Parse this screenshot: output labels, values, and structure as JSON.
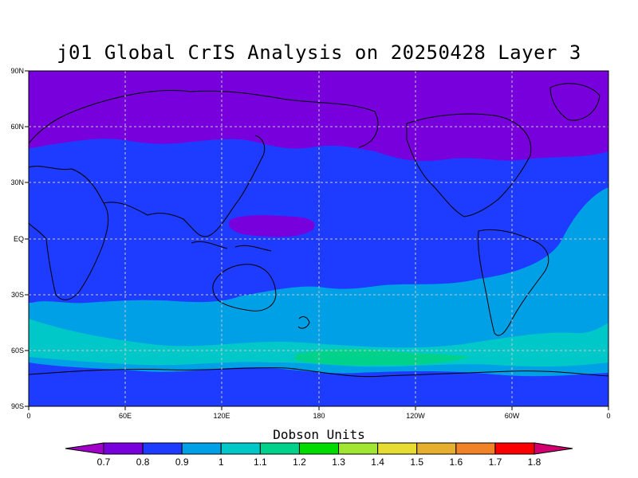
{
  "title": "j01 Global CrIS Analysis on 20250428 Layer 3",
  "lat_labels": [
    "90N",
    "60N",
    "30N",
    "EQ",
    "30S",
    "60S",
    "90S"
  ],
  "lon_labels": [
    "0",
    "60E",
    "120E",
    "180",
    "120W",
    "60W",
    "0"
  ],
  "colorbar": {
    "title": "Dobson Units",
    "ticks": [
      "0.7",
      "0.8",
      "0.9",
      "1",
      "1.1",
      "1.2",
      "1.3",
      "1.4",
      "1.5",
      "1.6",
      "1.7",
      "1.8"
    ],
    "colors": [
      "#a000c8",
      "#7800dc",
      "#1e3cff",
      "#00a0e6",
      "#00c8c8",
      "#00d28c",
      "#00dc00",
      "#a0e632",
      "#e6dc32",
      "#e6af2d",
      "#f08228",
      "#fa0000",
      "#d2006e"
    ]
  },
  "colors": {
    "band_0_8": "#7800dc",
    "band_0_9": "#1e3cff",
    "band_1": "#00a0e6",
    "band_1_1": "#00c8c8",
    "band_1_2": "#00d28c"
  }
}
